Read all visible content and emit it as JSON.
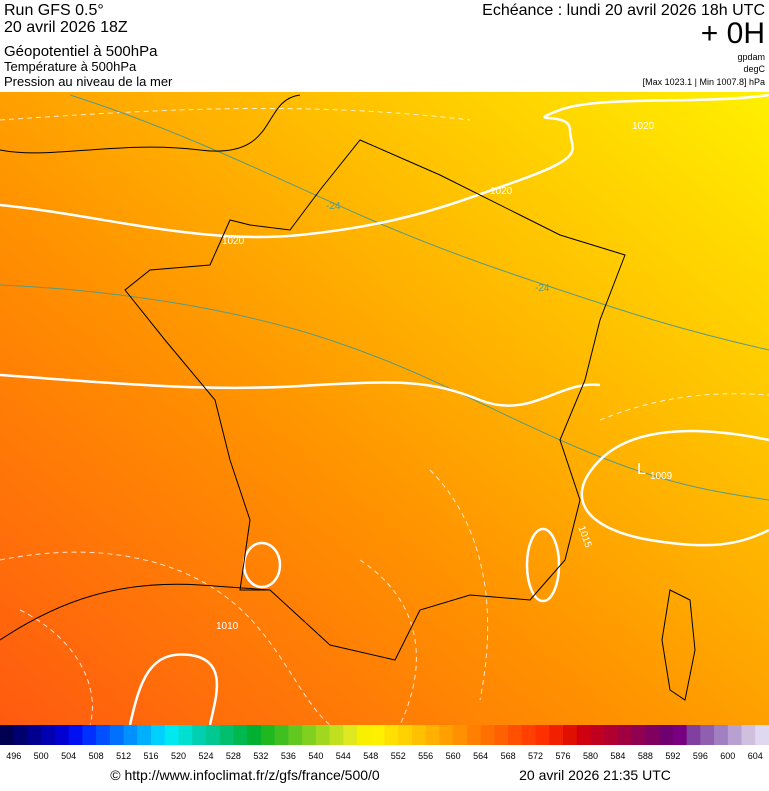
{
  "header": {
    "left": [
      "Run GFS 0.5°",
      "20 avril 2026 18Z",
      "Géopotentiel à 500hPa",
      "Température à 500hPa",
      "Pression au niveau de la mer"
    ],
    "right": {
      "valid": "Echéance : lundi 20 avril 2026 18h UTC",
      "lead": "+ 0H",
      "unit1": "gpdam",
      "unit2": "degC",
      "extremes": "[Max 1023.1 | Min 1007.8] hPa"
    }
  },
  "map": {
    "labels": [
      "1020",
      "1020",
      "1020",
      "-24",
      "-24",
      "L",
      "1009",
      "1015",
      "1010"
    ]
  },
  "colorbar": {
    "labels": [
      496,
      500,
      504,
      508,
      512,
      516,
      520,
      524,
      528,
      532,
      536,
      540,
      544,
      548,
      552,
      556,
      560,
      564,
      568,
      572,
      576,
      580,
      584,
      588,
      592,
      596,
      600,
      604
    ],
    "colors": [
      "#000050",
      "#00006e",
      "#000090",
      "#0000b0",
      "#0000d0",
      "#0010f0",
      "#0030ff",
      "#0050ff",
      "#0070ff",
      "#0090ff",
      "#00b0ff",
      "#00d0ff",
      "#00e8f0",
      "#00e0d0",
      "#00d0b0",
      "#00c890",
      "#00c070",
      "#00b850",
      "#00b030",
      "#20b820",
      "#40c020",
      "#60c820",
      "#80d020",
      "#a0d820",
      "#c0e020",
      "#e0e820",
      "#f8f000",
      "#fff000",
      "#ffe000",
      "#ffd000",
      "#ffc000",
      "#ffb000",
      "#ffa000",
      "#ff9000",
      "#ff8000",
      "#ff7000",
      "#ff6000",
      "#ff5000",
      "#ff4000",
      "#ff3000",
      "#f02000",
      "#e01000",
      "#d00010",
      "#c00020",
      "#b00030",
      "#a00040",
      "#900050",
      "#800060",
      "#700070",
      "#780080",
      "#8040a0",
      "#9060b0",
      "#a080c0",
      "#b8a0d0",
      "#d0c0e0",
      "#e0d8f0"
    ]
  },
  "footer": {
    "source": "© http://www.infoclimat.fr/z/gfs/france/500/0",
    "generated": "20 avril 2026 21:35 UTC"
  }
}
